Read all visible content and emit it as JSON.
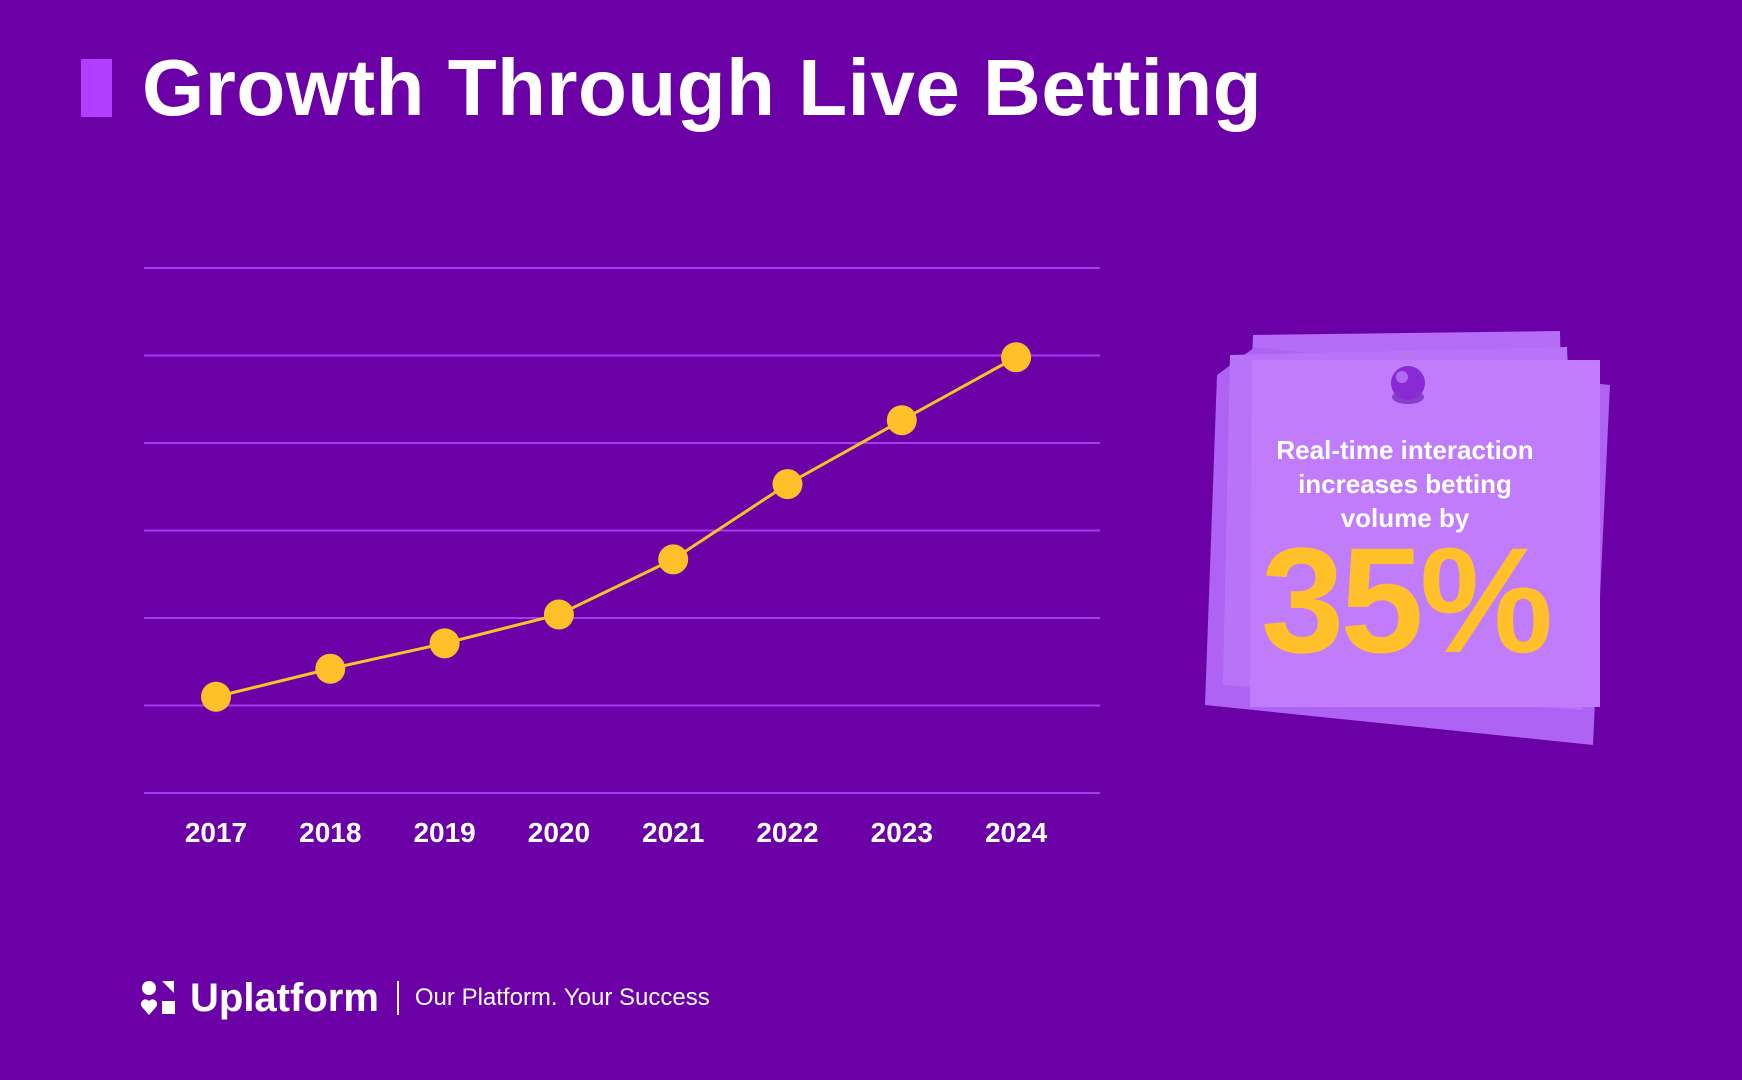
{
  "title": "Growth Through Live Betting",
  "colors": {
    "background": "#6a00a6",
    "accent_bar": "#b23cff",
    "gridline": "#a33cf0",
    "series": "#ffc02a",
    "note": "#c07cfb",
    "note_text": "#ffffff",
    "note_highlight": "#ffc02a"
  },
  "chart_data": {
    "type": "line",
    "title": "",
    "xlabel": "",
    "ylabel": "",
    "categories": [
      "2017",
      "2018",
      "2019",
      "2020",
      "2021",
      "2022",
      "2023",
      "2024"
    ],
    "values": [
      1.1,
      1.42,
      1.71,
      2.04,
      2.67,
      3.53,
      4.26,
      4.98
    ],
    "ylim": [
      0,
      6
    ],
    "grid": true,
    "y_ticks_visible": false,
    "legend": "none"
  },
  "callout": {
    "text": "Real-time interaction increases betting volume by",
    "value": "35%",
    "icon": "pushpin-icon"
  },
  "footer": {
    "brand": "Uplatform",
    "tagline": "Our Platform. Your Success",
    "icon": "uplatform-logo-icon"
  }
}
